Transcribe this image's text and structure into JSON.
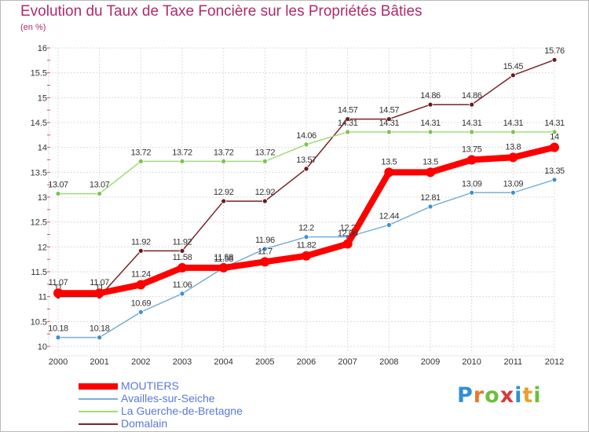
{
  "page": {
    "title": "Evolution du Taux de Taxe Foncière sur les Propriétés Bâties",
    "unit": "(en %)"
  },
  "logo": {
    "letters": [
      "P",
      "r",
      "o",
      "x",
      "i",
      "t",
      "i"
    ],
    "colors": [
      "#2f8fd8",
      "#e8772c",
      "#6cbf3c",
      "#d63a3a",
      "#2f8fd8",
      "#e8a12c",
      "#6cbf3c"
    ]
  },
  "chart_data": {
    "type": "line",
    "x": [
      "2000",
      "2001",
      "2002",
      "2003",
      "2004",
      "2005",
      "2006",
      "2007",
      "2008",
      "2009",
      "2010",
      "2011",
      "2012"
    ],
    "ylim": [
      10,
      16
    ],
    "yticks": [
      "10",
      "10.5",
      "11",
      "11.5",
      "12",
      "12.5",
      "13",
      "13.5",
      "14",
      "14.5",
      "15",
      "15.5",
      "16"
    ],
    "grid": true,
    "legend_position": "bottom",
    "series": [
      {
        "name": "Domalain",
        "color": "#7a2326",
        "marker": "#6b1a1e",
        "values": [
          11.0,
          11.0,
          11.92,
          11.92,
          12.92,
          12.92,
          13.57,
          14.57,
          14.57,
          14.86,
          14.86,
          15.45,
          15.76
        ],
        "labels": [
          "11",
          "11",
          "11.92",
          "11.92",
          "12.92",
          "12.92",
          "13.57",
          "14.57",
          "14.57",
          "14.86",
          "14.86",
          "15.45",
          "15.76"
        ]
      },
      {
        "name": "La Guerche-de-Bretagne",
        "color": "#9fdc78",
        "marker": "#7cc34e",
        "values": [
          13.07,
          13.07,
          13.72,
          13.72,
          13.72,
          13.72,
          14.06,
          14.31,
          14.31,
          14.31,
          14.31,
          14.31,
          14.31
        ],
        "labels": [
          "13.07",
          "13.07",
          "13.72",
          "13.72",
          "13.72",
          "13.72",
          "14.06",
          "14.31",
          "14.31",
          "14.31",
          "14.31",
          "14.31",
          "14.31"
        ]
      },
      {
        "name": "Availles-sur-Seiche",
        "color": "#7aaed8",
        "marker": "#3f8fd0",
        "values": [
          10.18,
          10.18,
          10.69,
          11.06,
          11.58,
          11.96,
          12.2,
          12.2,
          12.44,
          12.81,
          13.09,
          13.09,
          13.35
        ],
        "labels": [
          "10.18",
          "10.18",
          "10.69",
          "11.06",
          "11.58",
          "11.96",
          "12.2",
          "12.2",
          "12.44",
          "12.81",
          "13.09",
          "13.09",
          "13.35"
        ]
      },
      {
        "name": "MOUTIERS",
        "color": "#ff0000",
        "marker": "#ff0000",
        "values": [
          11.07,
          11.07,
          11.24,
          11.58,
          11.58,
          11.7,
          11.82,
          12.06,
          13.5,
          13.5,
          13.75,
          13.8,
          14.0
        ],
        "labels": [
          "11.07",
          "11.07",
          "11.24",
          "11.58",
          "11.58",
          "11.7",
          "11.82",
          "12.06",
          "13.5",
          "13.5",
          "13.75",
          "13.8",
          "14"
        ]
      }
    ],
    "legend": [
      {
        "name": "MOUTIERS",
        "color": "#ff0000",
        "thick": true
      },
      {
        "name": "Availles-sur-Seiche",
        "color": "#7aaed8",
        "thick": false
      },
      {
        "name": "La Guerche-de-Bretagne",
        "color": "#9fdc78",
        "thick": false
      },
      {
        "name": "Domalain",
        "color": "#7a2326",
        "thick": false
      }
    ]
  }
}
